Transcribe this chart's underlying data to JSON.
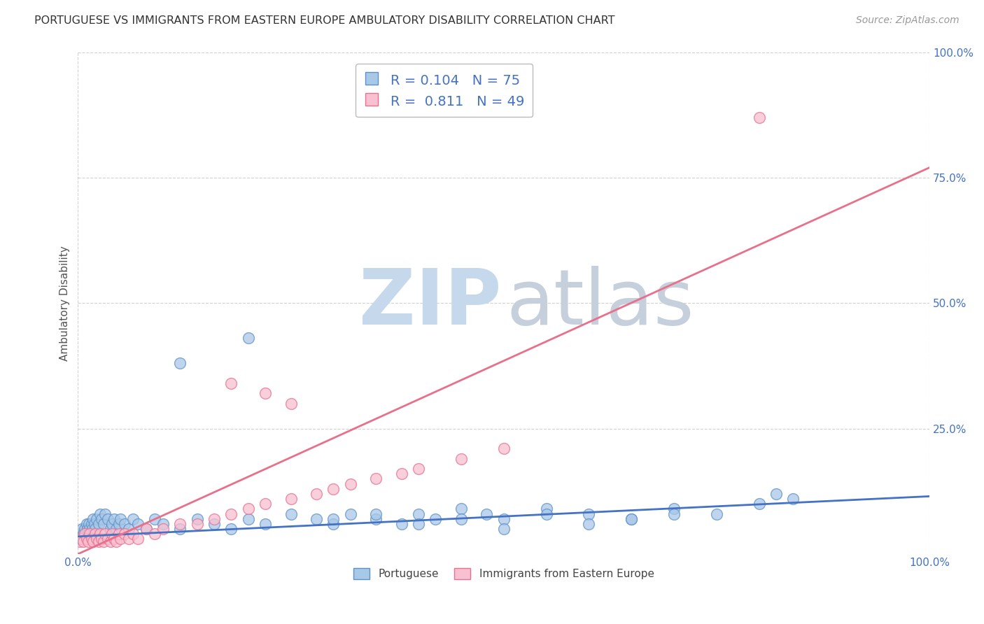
{
  "title": "PORTUGUESE VS IMMIGRANTS FROM EASTERN EUROPE AMBULATORY DISABILITY CORRELATION CHART",
  "source": "Source: ZipAtlas.com",
  "ylabel": "Ambulatory Disability",
  "xlim": [
    0,
    1
  ],
  "ylim": [
    0,
    1
  ],
  "xtick_labels": [
    "0.0%",
    "100.0%"
  ],
  "xtick_positions": [
    0,
    1.0
  ],
  "ytick_labels": [
    "100.0%",
    "75.0%",
    "50.0%",
    "25.0%"
  ],
  "ytick_positions": [
    1.0,
    0.75,
    0.5,
    0.25
  ],
  "grid_color": "#cccccc",
  "background_color": "#ffffff",
  "blue_fill": "#a8c8e8",
  "pink_fill": "#f8c0d0",
  "blue_edge": "#6090c8",
  "pink_edge": "#e87090",
  "blue_line": "#4472c4",
  "pink_line": "#e8708a",
  "title_color": "#333333",
  "source_color": "#999999",
  "legend_value_color": "#4472c4",
  "R_blue": 0.104,
  "N_blue": 75,
  "R_pink": 0.811,
  "N_pink": 49,
  "watermark_zip_color": "#c5d8ec",
  "watermark_atlas_color": "#c5d0dc",
  "blue_line_y0": 0.035,
  "blue_line_y1": 0.115,
  "pink_line_y0": 0.0,
  "pink_line_y1": 0.77,
  "blue_x": [
    0.002,
    0.003,
    0.004,
    0.005,
    0.006,
    0.007,
    0.008,
    0.009,
    0.01,
    0.011,
    0.012,
    0.013,
    0.014,
    0.015,
    0.016,
    0.017,
    0.018,
    0.019,
    0.02,
    0.022,
    0.024,
    0.026,
    0.028,
    0.03,
    0.032,
    0.035,
    0.038,
    0.04,
    0.042,
    0.045,
    0.048,
    0.05,
    0.055,
    0.06,
    0.065,
    0.07,
    0.08,
    0.09,
    0.1,
    0.12,
    0.14,
    0.16,
    0.18,
    0.2,
    0.22,
    0.25,
    0.28,
    0.3,
    0.32,
    0.35,
    0.38,
    0.4,
    0.42,
    0.45,
    0.48,
    0.5,
    0.55,
    0.6,
    0.65,
    0.7,
    0.75,
    0.8,
    0.3,
    0.35,
    0.4,
    0.45,
    0.5,
    0.55,
    0.6,
    0.65,
    0.7,
    0.82,
    0.84,
    0.12,
    0.2
  ],
  "blue_y": [
    0.03,
    0.04,
    0.03,
    0.05,
    0.04,
    0.03,
    0.05,
    0.04,
    0.06,
    0.05,
    0.04,
    0.06,
    0.05,
    0.04,
    0.06,
    0.05,
    0.07,
    0.06,
    0.05,
    0.07,
    0.06,
    0.08,
    0.07,
    0.06,
    0.08,
    0.07,
    0.05,
    0.06,
    0.07,
    0.05,
    0.06,
    0.07,
    0.06,
    0.05,
    0.07,
    0.06,
    0.05,
    0.07,
    0.06,
    0.05,
    0.07,
    0.06,
    0.05,
    0.07,
    0.06,
    0.08,
    0.07,
    0.06,
    0.08,
    0.07,
    0.06,
    0.08,
    0.07,
    0.09,
    0.08,
    0.07,
    0.09,
    0.08,
    0.07,
    0.09,
    0.08,
    0.1,
    0.07,
    0.08,
    0.06,
    0.07,
    0.05,
    0.08,
    0.06,
    0.07,
    0.08,
    0.12,
    0.11,
    0.38,
    0.43
  ],
  "pink_x": [
    0.002,
    0.004,
    0.006,
    0.008,
    0.01,
    0.012,
    0.014,
    0.016,
    0.018,
    0.02,
    0.022,
    0.024,
    0.026,
    0.028,
    0.03,
    0.032,
    0.035,
    0.038,
    0.04,
    0.042,
    0.045,
    0.048,
    0.05,
    0.055,
    0.06,
    0.065,
    0.07,
    0.08,
    0.09,
    0.1,
    0.12,
    0.14,
    0.16,
    0.18,
    0.2,
    0.22,
    0.25,
    0.28,
    0.3,
    0.32,
    0.35,
    0.38,
    0.4,
    0.45,
    0.5,
    0.18,
    0.22,
    0.8,
    0.25
  ],
  "pink_y": [
    0.025,
    0.03,
    0.025,
    0.04,
    0.03,
    0.025,
    0.04,
    0.03,
    0.025,
    0.04,
    0.03,
    0.025,
    0.04,
    0.03,
    0.025,
    0.04,
    0.03,
    0.025,
    0.04,
    0.03,
    0.025,
    0.04,
    0.03,
    0.04,
    0.03,
    0.04,
    0.03,
    0.05,
    0.04,
    0.05,
    0.06,
    0.06,
    0.07,
    0.08,
    0.09,
    0.1,
    0.11,
    0.12,
    0.13,
    0.14,
    0.15,
    0.16,
    0.17,
    0.19,
    0.21,
    0.34,
    0.32,
    0.87,
    0.3
  ]
}
